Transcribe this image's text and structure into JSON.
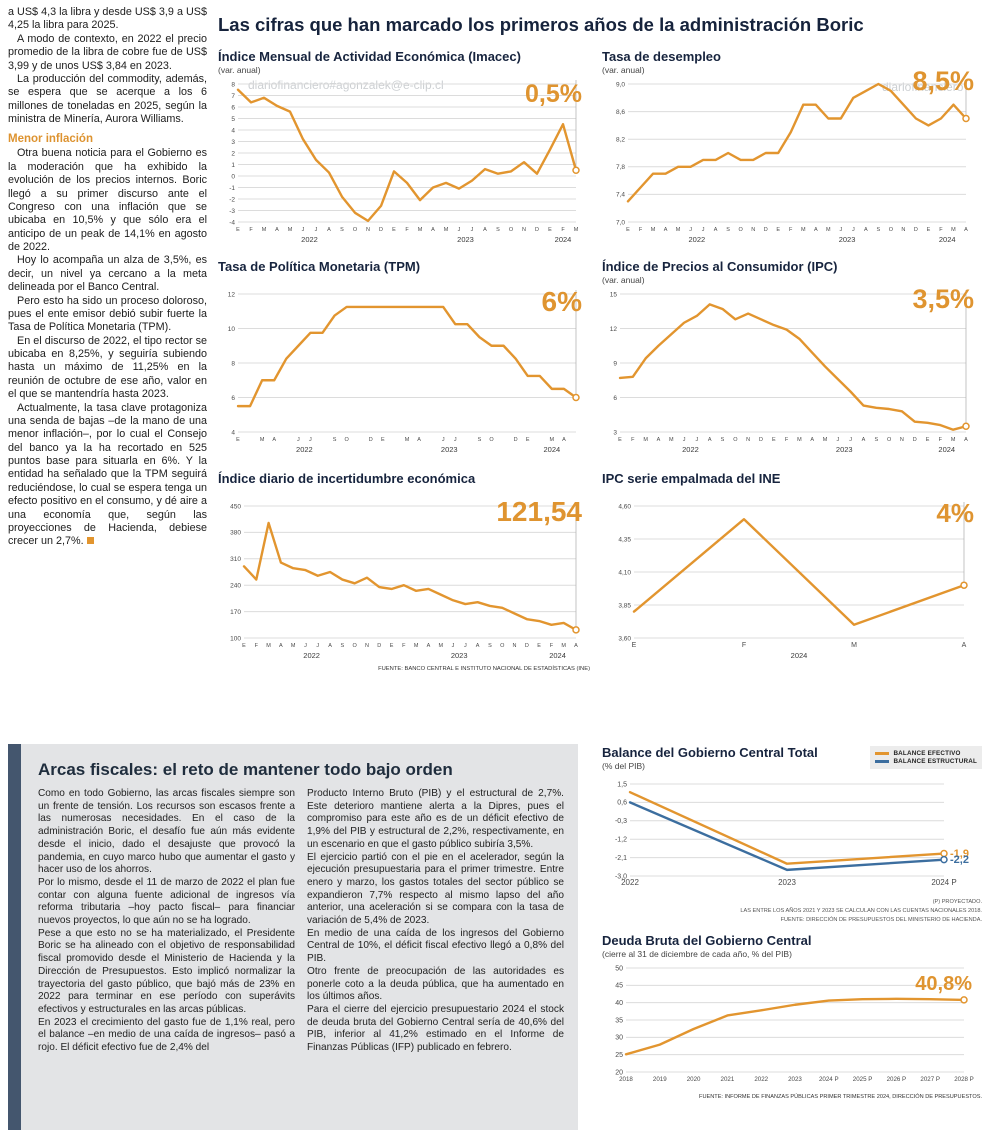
{
  "watermarks": {
    "email": "diariofinanciero#agonzalek@e-clip.cl",
    "short": "diariofinanciero"
  },
  "main": {
    "title": "Las cifras que han marcado los primeros años de la administración Boric"
  },
  "left_column": {
    "paragraphs_top": [
      "a US$ 4,3 la libra y desde US$ 3,9 a US$ 4,25 la libra para 2025.",
      "A modo de contexto, en 2022 el precio promedio de la libra de cobre fue de US$ 3,99 y de unos US$ 3,84 en 2023.",
      "La producción del commodity, además, se espera que se acerque a los 6 millones de toneladas en 2025, según la ministra de Minería, Aurora Williams."
    ],
    "subhead": "Menor inflación",
    "paragraphs_bottom": [
      "Otra buena noticia para el Gobierno es la moderación que ha exhibido la evolución de los precios internos. Boric llegó a su primer discurso ante el Congreso con una inflación que se ubicaba en 10,5% y que sólo era el anticipo de un peak de 14,1% en agosto de 2022.",
      "Hoy lo acompaña un alza de 3,5%, es decir, un nivel ya cercano a la meta delineada por el Banco Central.",
      "Pero esto ha sido un proceso doloroso, pues el ente emisor debió subir fuerte la Tasa de Política Monetaria (TPM).",
      "En el discurso de 2022, el tipo rector se ubicaba en 8,25%, y seguiría subiendo hasta un máximo de 11,25% en la reunión de octubre de ese año, valor en el que se mantendría hasta 2023.",
      "Actualmente, la tasa clave protagoniza una senda de bajas –de la mano de una menor inflación–, por lo cual el Consejo del banco ya la ha recortado en 525 puntos base para situarla en 6%. Y la entidad ha señalado que la TPM seguirá reduciéndose, lo cual se espera tenga un efecto positivo en el consumo, y dé aire a una economía que, según las proyecciones de Hacienda, debiese crecer un 2,7%."
    ]
  },
  "fiscal_box": {
    "title": "Arcas fiscales: el reto de mantener todo bajo orden",
    "col1": [
      "Como en todo Gobierno, las arcas fiscales siempre son un frente de tensión. Los recursos son escasos frente a las numerosas necesidades. En el caso de la administración Boric, el desafío fue aún más evidente desde el inicio, dado el desajuste que provocó la pandemia, en cuyo marco hubo que aumentar el gasto y hacer uso de los ahorros.",
      "Por lo mismo, desde el 11 de marzo de 2022 el plan fue contar con alguna fuente adicional de ingresos vía reforma tributaria –hoy pacto fiscal– para financiar nuevos proyectos, lo que aún no se ha logrado.",
      "Pese a que esto no se ha materializado, el Presidente Boric se ha alineado con el objetivo de responsabilidad fiscal promovido desde el Ministerio de Hacienda y la Dirección de Presupuestos. Esto implicó normalizar la trayectoria del gasto público, que bajó más de 23% en 2022 para terminar en ese período con superávits efectivos y estructurales en las arcas públicas.",
      "En 2023 el crecimiento del gasto fue de 1,1% real, pero el balance –en medio de una caída de ingresos– pasó a rojo. El déficit efectivo fue de 2,4% del"
    ],
    "col2": [
      "Producto Interno Bruto (PIB) y el estructural de 2,7%. Este deterioro mantiene alerta a la Dipres, pues el compromiso para este año es de un déficit efectivo de 1,9% del PIB y estructural de 2,2%, respectivamente, en un escenario en que el gasto público subiría 3,5%.",
      "El ejercicio partió con el pie en el acelerador, según la ejecución presupuestaria para el primer trimestre. Entre enero y marzo, los gastos totales del sector público se expandieron 7,7% respecto al mismo lapso del año anterior, una aceleración si se compara con la tasa de variación de 5,4% de 2023.",
      "En medio de una caída de los ingresos del Gobierno Central de 10%, el déficit fiscal efectivo llegó a 0,8% del PIB.",
      "Otro frente de preocupación de las autoridades es ponerle coto a la deuda pública, que ha aumentado en los últimos años.",
      "Para el cierre del ejercicio presupuestario 2024 el stock de deuda bruta del Gobierno Central sería de 40,6% del PIB, inferior al 41,2% estimado en el Informe de Finanzas Públicas (IFP) publicado en febrero."
    ]
  },
  "colors": {
    "accent_orange": "#E2952F",
    "line_blue": "#3C6E9F",
    "navy": "#16233C",
    "box_bg": "#E3E4E6",
    "accent_bar": "#44566E"
  },
  "chart_data": [
    {
      "id": "imacec",
      "type": "line",
      "title": "Índice Mensual de Actividad Económica (Imacec)",
      "subtitle": "(var. anual)",
      "big_label": "0,5%",
      "yticks": [
        "8",
        "7",
        "6",
        "5",
        "4",
        "3",
        "2",
        "1",
        "0",
        "-1",
        "-2",
        "-3",
        "-4"
      ],
      "xlabels": [
        "E",
        "F",
        "M",
        "A",
        "M",
        "J",
        "J",
        "A",
        "S",
        "O",
        "N",
        "D",
        "E",
        "F",
        "M",
        "A",
        "M",
        "J",
        "J",
        "A",
        "S",
        "O",
        "N",
        "D",
        "E",
        "F",
        "M"
      ],
      "years": [
        {
          "label": "2022",
          "start": 0,
          "end": 11
        },
        {
          "label": "2023",
          "start": 12,
          "end": 23
        },
        {
          "label": "2024",
          "start": 24,
          "end": 26
        }
      ],
      "series": [
        {
          "color": "#E2952F",
          "values": [
            7.5,
            6.4,
            6.8,
            6.1,
            5.6,
            3.2,
            1.4,
            0.3,
            -1.8,
            -3.2,
            -3.9,
            -2.6,
            0.4,
            -0.6,
            -2.1,
            -1.0,
            -0.6,
            -1.1,
            -0.4,
            0.6,
            0.2,
            0.4,
            1.2,
            0.2,
            2.3,
            4.5,
            0.5
          ]
        }
      ]
    },
    {
      "id": "desempleo",
      "type": "line",
      "title": "Tasa de desempleo",
      "subtitle": "(var. anual)",
      "big_label": "8,5%",
      "yticks": [
        "9,0",
        "8,6",
        "8,2",
        "7,8",
        "7,4",
        "7,0"
      ],
      "xlabels": [
        "E",
        "F",
        "M",
        "A",
        "M",
        "J",
        "J",
        "A",
        "S",
        "O",
        "N",
        "D",
        "E",
        "F",
        "M",
        "A",
        "M",
        "J",
        "J",
        "A",
        "S",
        "O",
        "N",
        "D",
        "E",
        "F",
        "M",
        "A"
      ],
      "years": [
        {
          "label": "2022",
          "start": 0,
          "end": 11
        },
        {
          "label": "2023",
          "start": 12,
          "end": 23
        },
        {
          "label": "2024",
          "start": 24,
          "end": 27
        }
      ],
      "series": [
        {
          "color": "#E2952F",
          "values": [
            7.3,
            7.5,
            7.7,
            7.7,
            7.8,
            7.8,
            7.9,
            7.9,
            8.0,
            7.9,
            7.9,
            8.0,
            8.0,
            8.3,
            8.7,
            8.7,
            8.5,
            8.5,
            8.8,
            8.9,
            9.0,
            8.9,
            8.7,
            8.5,
            8.4,
            8.5,
            8.7,
            8.5
          ]
        }
      ]
    },
    {
      "id": "tpm",
      "type": "line",
      "title": "Tasa de Política Monetaria (TPM)",
      "subtitle": "",
      "big_label": "6%",
      "yticks": [
        "12",
        "10",
        "8",
        "6",
        "4"
      ],
      "xlabels": [
        "E",
        "",
        "M",
        "A",
        "",
        "J",
        "J",
        "",
        "S",
        "O",
        "",
        "D",
        "E",
        "",
        "M",
        "A",
        "",
        "J",
        "J",
        "",
        "S",
        "O",
        "",
        "D",
        "E",
        "",
        "M",
        "A",
        ""
      ],
      "years": [
        {
          "label": "2022",
          "start": 0,
          "end": 11
        },
        {
          "label": "2023",
          "start": 12,
          "end": 23
        },
        {
          "label": "2024",
          "start": 24,
          "end": 28
        }
      ],
      "series": [
        {
          "color": "#E2952F",
          "values": [
            5.5,
            5.5,
            7.0,
            7.0,
            8.25,
            9.0,
            9.75,
            9.75,
            10.75,
            11.25,
            11.25,
            11.25,
            11.25,
            11.25,
            11.25,
            11.25,
            11.25,
            11.25,
            10.25,
            10.25,
            9.5,
            9.0,
            9.0,
            8.25,
            7.25,
            7.25,
            6.5,
            6.5,
            6.0
          ]
        }
      ]
    },
    {
      "id": "ipc",
      "type": "line",
      "title": "Índice de Precios al Consumidor (IPC)",
      "subtitle": "(var. anual)",
      "big_label": "3,5%",
      "yticks": [
        "15",
        "12",
        "9",
        "6",
        "3"
      ],
      "xlabels": [
        "E",
        "F",
        "M",
        "A",
        "M",
        "J",
        "J",
        "A",
        "S",
        "O",
        "N",
        "D",
        "E",
        "F",
        "M",
        "A",
        "M",
        "J",
        "J",
        "A",
        "S",
        "O",
        "N",
        "D",
        "E",
        "F",
        "M",
        "A"
      ],
      "years": [
        {
          "label": "2022",
          "start": 0,
          "end": 11
        },
        {
          "label": "2023",
          "start": 12,
          "end": 23
        },
        {
          "label": "2024",
          "start": 24,
          "end": 27
        }
      ],
      "series": [
        {
          "color": "#E2952F",
          "values": [
            7.7,
            7.8,
            9.4,
            10.5,
            11.5,
            12.5,
            13.1,
            14.1,
            13.7,
            12.8,
            13.3,
            12.8,
            12.3,
            11.9,
            11.1,
            9.9,
            8.7,
            7.6,
            6.5,
            5.3,
            5.1,
            5.0,
            4.8,
            3.9,
            3.8,
            3.6,
            3.2,
            3.5
          ]
        }
      ]
    },
    {
      "id": "incertidumbre",
      "type": "line",
      "title": "Índice diario de incertidumbre económica",
      "subtitle": "",
      "big_label": "121,54",
      "source": "FUENTE: BANCO CENTRAL E INSTITUTO NACIONAL DE ESTADÍSTICAS (INE)",
      "yticks": [
        "450",
        "380",
        "310",
        "240",
        "170",
        "100"
      ],
      "xlabels": [
        "E",
        "F",
        "M",
        "A",
        "M",
        "J",
        "J",
        "A",
        "S",
        "O",
        "N",
        "D",
        "E",
        "F",
        "M",
        "A",
        "M",
        "J",
        "J",
        "A",
        "S",
        "O",
        "N",
        "D",
        "E",
        "F",
        "M",
        "A"
      ],
      "years": [
        {
          "label": "2022",
          "start": 0,
          "end": 11
        },
        {
          "label": "2023",
          "start": 12,
          "end": 23
        },
        {
          "label": "2024",
          "start": 24,
          "end": 27
        }
      ],
      "series": [
        {
          "color": "#E2952F",
          "values": [
            290,
            255,
            405,
            300,
            285,
            280,
            265,
            275,
            255,
            245,
            260,
            235,
            230,
            240,
            225,
            230,
            215,
            200,
            190,
            195,
            185,
            180,
            165,
            150,
            145,
            135,
            140,
            121.54
          ]
        }
      ]
    },
    {
      "id": "ipc_ine",
      "type": "line",
      "title": "IPC serie empalmada del INE",
      "subtitle": "",
      "big_label": "4%",
      "yticks": [
        "4,60",
        "4,35",
        "4,10",
        "3,85",
        "3,60"
      ],
      "xlabels": [
        "E",
        "F",
        "M",
        "A"
      ],
      "years": [
        {
          "label": "2024",
          "start": 0,
          "end": 3
        }
      ],
      "series": [
        {
          "color": "#E2952F",
          "values": [
            3.8,
            4.5,
            3.7,
            4.0
          ]
        }
      ]
    },
    {
      "id": "balance",
      "type": "line",
      "title": "Balance del Gobierno Central Total",
      "subtitle": "(% del PIB)",
      "yticks": [
        "1,5",
        "0,6",
        "-0,3",
        "-1,2",
        "-2,1",
        "-3,0"
      ],
      "xlabels": [
        "2022",
        "2023",
        "2024 P"
      ],
      "series": [
        {
          "name": "BALANCE EFECTIVO",
          "color": "#E2952F",
          "values": [
            1.1,
            -2.4,
            -1.9
          ],
          "end_label": "-1,9"
        },
        {
          "name": "BALANCE ESTRUCTURAL",
          "color": "#3C6E9F",
          "values": [
            0.6,
            -2.7,
            -2.2
          ],
          "end_label": "-2,2"
        }
      ],
      "footnotes": [
        "(P) PROYECTADO.",
        "LAS ENTRE LOS AÑOS 2021 Y 2023 SE CALCULAN CON LAS CUENTAS NACIONALES 2018.",
        "FUENTE: DIRECCIÓN DE PRESUPUESTOS DEL MINISTERIO DE HACIENDA."
      ]
    },
    {
      "id": "deuda",
      "type": "line",
      "title": "Deuda Bruta del Gobierno Central",
      "subtitle": "(cierre al 31 de diciembre de cada año, % del PIB)",
      "big_label": "40,8%",
      "source": "FUENTE: INFORME DE FINANZAS PÚBLICAS PRIMER TRIMESTRE 2024, DIRECCIÓN DE PRESUPUESTOS.",
      "yticks": [
        "50",
        "45",
        "40",
        "35",
        "30",
        "25",
        "20"
      ],
      "xlabels": [
        "2018",
        "2019",
        "2020",
        "2021",
        "2022",
        "2023",
        "2024 P",
        "2025 P",
        "2026 P",
        "2027 P",
        "2028 P"
      ],
      "series": [
        {
          "color": "#E2952F",
          "values": [
            25.1,
            27.9,
            32.4,
            36.3,
            37.8,
            39.4,
            40.6,
            41.0,
            41.1,
            41.0,
            40.8
          ]
        }
      ]
    }
  ]
}
